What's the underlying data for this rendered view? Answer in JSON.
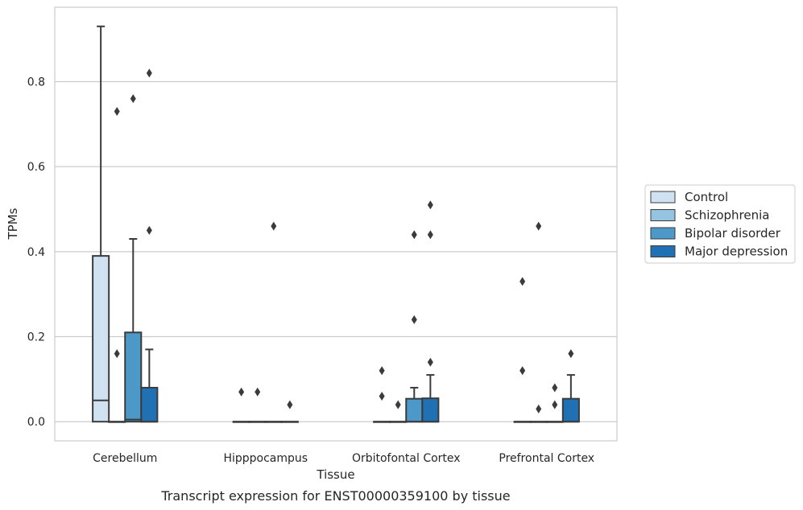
{
  "chart_data": {
    "type": "box",
    "xlabel": "Tissue",
    "ylabel": "TPMs",
    "caption": "Transcript expression for ENST00000359100 by tissue",
    "ylim": [
      -0.045,
      0.975
    ],
    "yticks": [
      "0.0",
      "0.2",
      "0.4",
      "0.6",
      "0.8"
    ],
    "grid": "horizontal",
    "legend_position": "right",
    "categories": [
      "Cerebellum",
      "Hipppocampus",
      "Orbitofontal Cortex",
      "Prefrontal Cortex"
    ],
    "series": [
      {
        "name": "Control",
        "color": "#d0e1f2",
        "boxes": [
          {
            "q1": 0.0,
            "median": 0.05,
            "q3": 0.39,
            "whisker_low": 0.0,
            "whisker_high": 0.93,
            "outliers": []
          },
          {
            "q1": 0.0,
            "median": 0.0,
            "q3": 0.0,
            "whisker_low": 0.0,
            "whisker_high": 0.0,
            "outliers": [
              0.07
            ]
          },
          {
            "q1": 0.0,
            "median": 0.0,
            "q3": 0.0,
            "whisker_low": 0.0,
            "whisker_high": 0.0,
            "outliers": [
              0.12,
              0.06
            ]
          },
          {
            "q1": 0.0,
            "median": 0.0,
            "q3": 0.0,
            "whisker_low": 0.0,
            "whisker_high": 0.0,
            "outliers": [
              0.33,
              0.12
            ]
          }
        ]
      },
      {
        "name": "Schizophrenia",
        "color": "#94c4df",
        "boxes": [
          {
            "q1": 0.0,
            "median": 0.0,
            "q3": 0.0,
            "whisker_low": 0.0,
            "whisker_high": 0.0,
            "outliers": [
              0.73,
              0.16
            ]
          },
          {
            "q1": 0.0,
            "median": 0.0,
            "q3": 0.0,
            "whisker_low": 0.0,
            "whisker_high": 0.0,
            "outliers": [
              0.07
            ]
          },
          {
            "q1": 0.0,
            "median": 0.0,
            "q3": 0.0,
            "whisker_low": 0.0,
            "whisker_high": 0.0,
            "outliers": [
              0.04
            ]
          },
          {
            "q1": 0.0,
            "median": 0.0,
            "q3": 0.0,
            "whisker_low": 0.0,
            "whisker_high": 0.0,
            "outliers": [
              0.46,
              0.03
            ]
          }
        ]
      },
      {
        "name": "Bipolar disorder",
        "color": "#4b98c9",
        "boxes": [
          {
            "q1": 0.0,
            "median": 0.005,
            "q3": 0.21,
            "whisker_low": 0.0,
            "whisker_high": 0.43,
            "outliers": [
              0.76
            ]
          },
          {
            "q1": 0.0,
            "median": 0.0,
            "q3": 0.0,
            "whisker_low": 0.0,
            "whisker_high": 0.0,
            "outliers": [
              0.46
            ]
          },
          {
            "q1": 0.0,
            "median": 0.0,
            "q3": 0.054,
            "whisker_low": 0.0,
            "whisker_high": 0.08,
            "outliers": [
              0.44,
              0.24
            ]
          },
          {
            "q1": 0.0,
            "median": 0.0,
            "q3": 0.0,
            "whisker_low": 0.0,
            "whisker_high": 0.0,
            "outliers": [
              0.08,
              0.04
            ]
          }
        ]
      },
      {
        "name": "Major depression",
        "color": "#2070b4",
        "boxes": [
          {
            "q1": 0.0,
            "median": 0.0,
            "q3": 0.08,
            "whisker_low": 0.0,
            "whisker_high": 0.17,
            "outliers": [
              0.82,
              0.45
            ]
          },
          {
            "q1": 0.0,
            "median": 0.0,
            "q3": 0.0,
            "whisker_low": 0.0,
            "whisker_high": 0.0,
            "outliers": [
              0.04
            ]
          },
          {
            "q1": 0.0,
            "median": 0.0,
            "q3": 0.055,
            "whisker_low": 0.0,
            "whisker_high": 0.11,
            "outliers": [
              0.51,
              0.44,
              0.14
            ]
          },
          {
            "q1": 0.0,
            "median": 0.0,
            "q3": 0.054,
            "whisker_low": 0.0,
            "whisker_high": 0.11,
            "outliers": [
              0.16
            ]
          }
        ]
      }
    ]
  }
}
